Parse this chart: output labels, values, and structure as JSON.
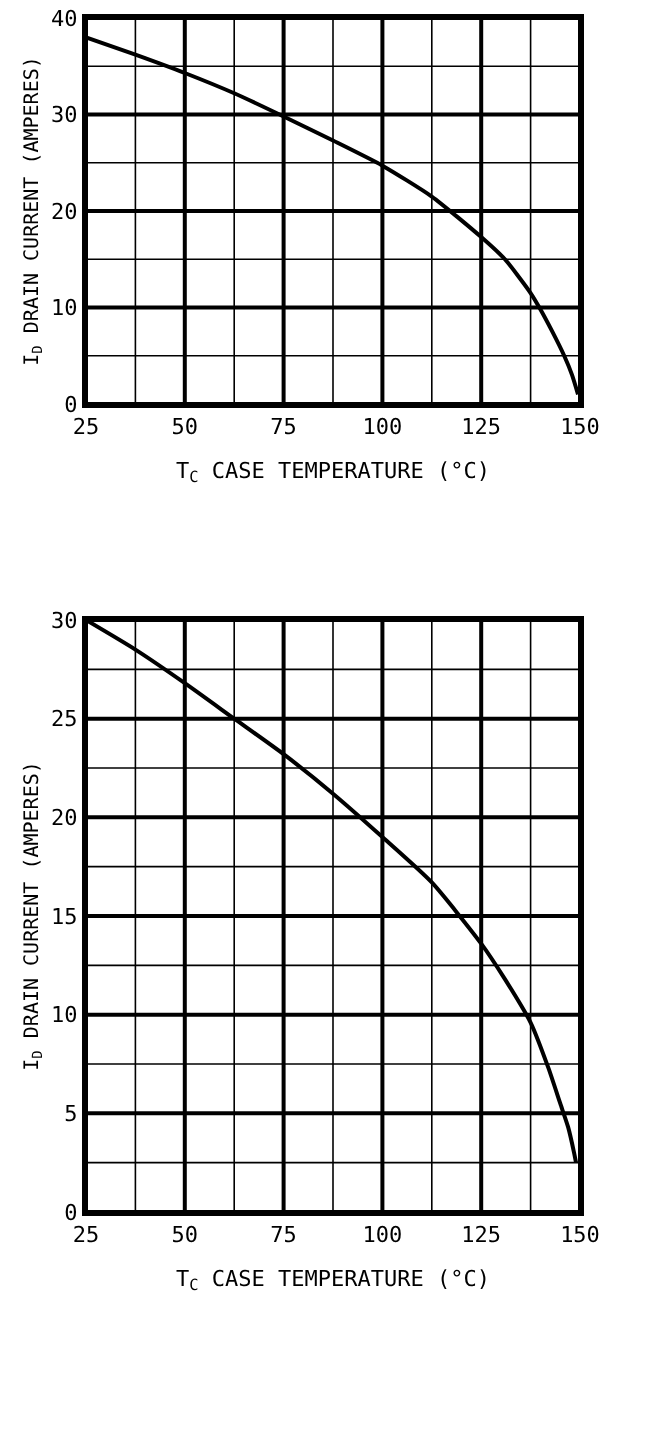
{
  "chart_data": [
    {
      "type": "line",
      "xlabel": "T$_{C}$ CASE TEMPERATURE (°C)",
      "ylabel": "I$_{D}$ DRAIN CURRENT (AMPERES)",
      "x": [
        25,
        37.5,
        50,
        62.5,
        75,
        87.5,
        100,
        112.5,
        125,
        131,
        137.5,
        140,
        143,
        146,
        148,
        149.5
      ],
      "series": [
        {
          "color": "#000000",
          "values": [
            38,
            36.2,
            34.3,
            32.2,
            29.8,
            27.3,
            24.7,
            21.5,
            17.3,
            15,
            11.5,
            9.8,
            7.5,
            5,
            3,
            1
          ]
        }
      ],
      "xlim": [
        25,
        150
      ],
      "ylim": [
        0,
        40
      ],
      "xticks": [
        25,
        {
          "value": 37.5,
          "label": null
        },
        50,
        {
          "value": 62.5,
          "label": null
        },
        75,
        {
          "value": 87.5,
          "label": null
        },
        100,
        {
          "value": 112.5,
          "label": null
        },
        125,
        {
          "value": 137.5,
          "label": null
        },
        150
      ],
      "yticks": [
        0,
        {
          "value": 5,
          "label": null
        },
        10,
        {
          "value": 15,
          "label": null
        },
        20,
        {
          "value": 25,
          "label": null
        },
        30,
        {
          "value": 35,
          "label": null
        },
        40
      ],
      "grid": true,
      "marker": "none",
      "line_style": "solid"
    },
    {
      "type": "line",
      "xlabel": "T$_{C}$ CASE TEMPERATURE (°C)",
      "ylabel": "I$_{D}$ DRAIN CURRENT (AMPERES)",
      "x": [
        25,
        37.5,
        50,
        62.5,
        75,
        87.5,
        100,
        112.5,
        125,
        131,
        137.5,
        142,
        145,
        147,
        148.5,
        149
      ],
      "series": [
        {
          "color": "#000000",
          "values": [
            30,
            28.5,
            26.8,
            25,
            23.2,
            21.2,
            19,
            16.7,
            13.6,
            11.8,
            9.6,
            7.3,
            5.5,
            4.3,
            3,
            2.5
          ]
        }
      ],
      "xlim": [
        25,
        150
      ],
      "ylim": [
        0,
        30
      ],
      "xticks": [
        25,
        {
          "value": 37.5,
          "label": null
        },
        50,
        {
          "value": 62.5,
          "label": null
        },
        75,
        {
          "value": 87.5,
          "label": null
        },
        100,
        {
          "value": 112.5,
          "label": null
        },
        125,
        {
          "value": 137.5,
          "label": null
        },
        150
      ],
      "yticks": [
        0,
        {
          "value": 2.5,
          "label": null
        },
        5,
        {
          "value": 7.5,
          "label": null
        },
        10,
        {
          "value": 12.5,
          "label": null
        },
        15,
        {
          "value": 17.5,
          "label": null
        },
        20,
        {
          "value": 22.5,
          "label": null
        },
        25,
        {
          "value": 27.5,
          "label": null
        },
        30
      ],
      "grid": true,
      "marker": "none",
      "line_style": "solid"
    }
  ]
}
